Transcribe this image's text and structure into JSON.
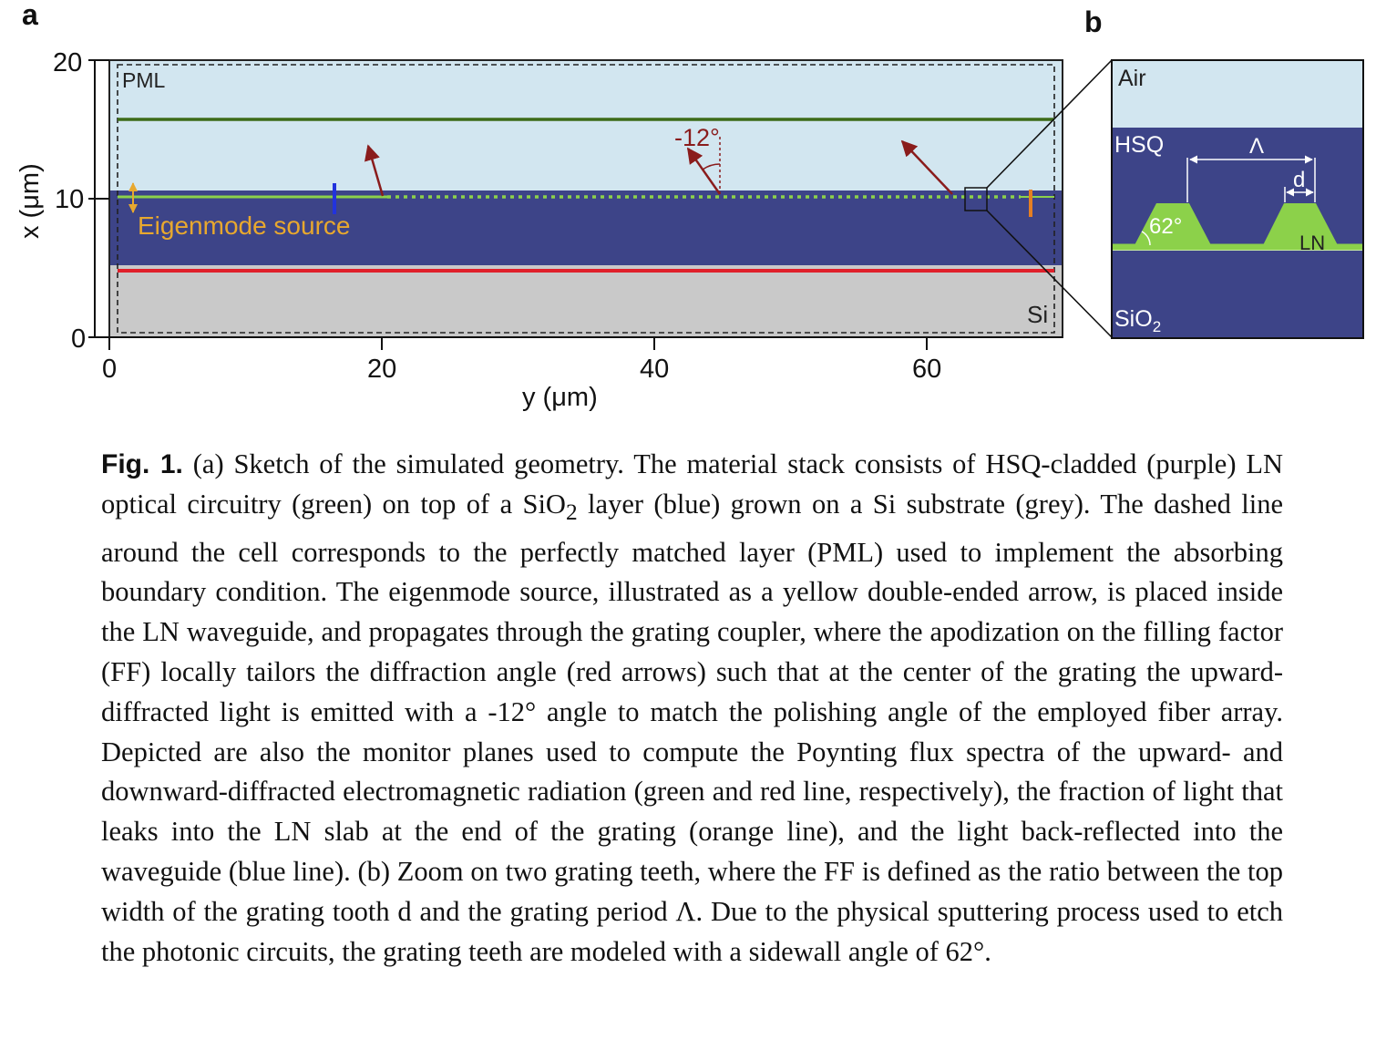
{
  "panel_a": {
    "label": "a",
    "pml_label": "PML",
    "si_label": "Si",
    "source_label": "Eigenmode source",
    "angle_label": "-12°",
    "xaxis_label": "y (μm)",
    "yaxis_label": "x (μm)",
    "xticks": [
      "0",
      "20",
      "40",
      "60"
    ],
    "yticks": [
      "0",
      "10",
      "20"
    ],
    "colors": {
      "air": "#d2e6f0",
      "hsq": "#3d4488",
      "si": "#c9c9c9",
      "ln": "#8cd14a",
      "upper_monitor": "#3d6b19",
      "lower_monitor": "#e0202a",
      "reflection_monitor": "#2233dd",
      "leak_monitor": "#e57f23",
      "source_arrow": "#e8a82e",
      "diffraction_arrow": "#8a1c1c"
    }
  },
  "panel_b": {
    "label": "b",
    "air_label": "Air",
    "hsq_label": "HSQ",
    "sio2_label_main": "SiO",
    "sio2_label_sub": "2",
    "ln_label": "LN",
    "period_label": "Λ",
    "width_label": "d",
    "angle_label": "62°"
  },
  "caption": {
    "label": "Fig. 1.",
    "part1": "(a) Sketch of the simulated geometry. The material stack consists of HSQ-cladded (purple) LN optical circuitry (green) on top of a SiO",
    "sub1": "2",
    "part2": " layer (blue) grown on a Si substrate (grey). The dashed line around the cell corresponds to the perfectly matched layer (PML) used to implement the absorbing boundary condition. The eigenmode source, illustrated as a yellow double-ended arrow, is placed inside the LN waveguide, and propagates through the grating coupler, where the apodization on the filling factor (FF) locally tailors the diffraction angle (red arrows) such that at the center of the grating the upward-diffracted light is emitted with a -12° angle to match the polishing angle of the employed fiber array. Depicted are also the monitor planes used to compute the Poynting flux spectra of the upward- and downward-diffracted electromagnetic radiation (green and red line, respectively), the fraction of light that leaks into the LN slab at the end of the grating (orange line), and the light back-reflected into the waveguide (blue line). (b) Zoom on two grating teeth, where the FF is defined as the ratio between the top width of the grating tooth d and the grating period Λ. Due to the physical sputtering process used to etch the photonic circuits, the grating teeth are modeled with a sidewall angle of 62°."
  }
}
